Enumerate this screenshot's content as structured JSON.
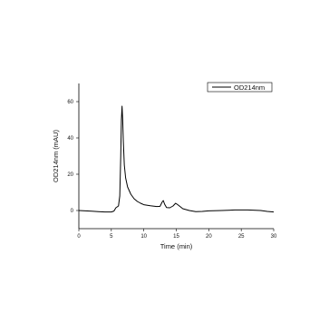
{
  "chart_data": {
    "type": "line",
    "xlabel": "Time (min)",
    "ylabel": "OD214nm (mAU)",
    "xlim": [
      0,
      30
    ],
    "ylim": [
      -10,
      70
    ],
    "x_ticks": [
      0,
      5,
      10,
      15,
      20,
      25,
      30
    ],
    "y_ticks": [
      0,
      20,
      40,
      60
    ],
    "grid": false,
    "legend_position": "top-right",
    "series": [
      {
        "name": "OD214nm",
        "color": "#000000",
        "points": [
          [
            0,
            0.0
          ],
          [
            1,
            -0.2
          ],
          [
            2,
            -0.4
          ],
          [
            3,
            -0.6
          ],
          [
            4,
            -0.8
          ],
          [
            5,
            -0.8
          ],
          [
            5.4,
            -0.3
          ],
          [
            5.7,
            1.5
          ],
          [
            5.9,
            2.0
          ],
          [
            6.1,
            2.5
          ],
          [
            6.3,
            8
          ],
          [
            6.45,
            30
          ],
          [
            6.55,
            50
          ],
          [
            6.65,
            57.5
          ],
          [
            6.75,
            50
          ],
          [
            6.85,
            38
          ],
          [
            7.0,
            25
          ],
          [
            7.2,
            18
          ],
          [
            7.5,
            13
          ],
          [
            8.0,
            9
          ],
          [
            8.5,
            6.5
          ],
          [
            9.0,
            5
          ],
          [
            9.5,
            4
          ],
          [
            10,
            3.2
          ],
          [
            11,
            2.6
          ],
          [
            12,
            2.2
          ],
          [
            12.5,
            2.3
          ],
          [
            12.8,
            4.5
          ],
          [
            13.0,
            5.5
          ],
          [
            13.2,
            3.5
          ],
          [
            13.5,
            1.6
          ],
          [
            14.0,
            1.5
          ],
          [
            14.5,
            2.5
          ],
          [
            14.9,
            4.0
          ],
          [
            15.3,
            3.0
          ],
          [
            16,
            1.0
          ],
          [
            17,
            0.0
          ],
          [
            18,
            -0.6
          ],
          [
            19,
            -0.5
          ],
          [
            20,
            -0.2
          ],
          [
            22,
            0.0
          ],
          [
            24,
            0.3
          ],
          [
            26,
            0.3
          ],
          [
            28,
            0.0
          ],
          [
            29,
            -0.5
          ],
          [
            30,
            -0.8
          ]
        ]
      }
    ]
  }
}
